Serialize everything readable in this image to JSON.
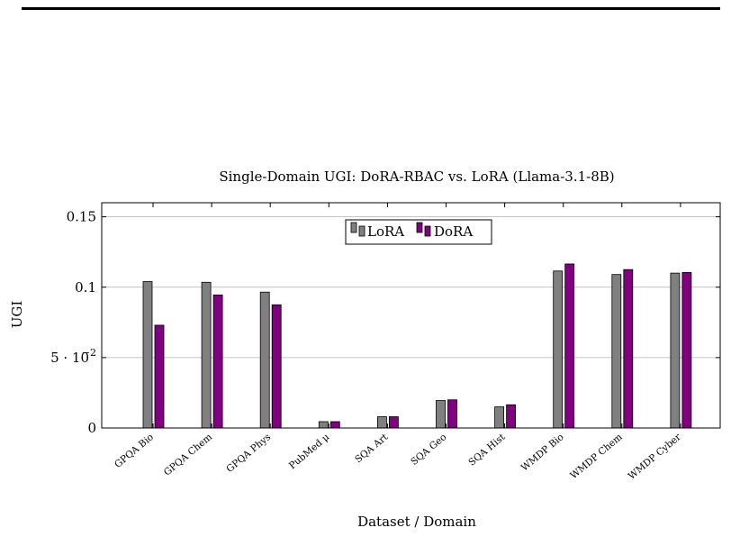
{
  "chart_data": {
    "type": "bar",
    "title": "Single-Domain UGI: DoRA-RBAC vs. LoRA (Llama-3.1-8B)",
    "xlabel": "Dataset / Domain",
    "ylabel": "UGI",
    "ylim": [
      0,
      0.16
    ],
    "yticks": [
      {
        "value": 0,
        "label": "0"
      },
      {
        "value": 0.05,
        "label": "5 · 10",
        "sup": "−2"
      },
      {
        "value": 0.1,
        "label": "0.1"
      },
      {
        "value": 0.15,
        "label": "0.15"
      }
    ],
    "grid": "horizontal",
    "legend_position": "top-center",
    "categories": [
      "GPQA Bio",
      "GPQA Chem",
      "GPQA Phys",
      "PubMed μ",
      "SQA Art",
      "SQA Geo",
      "SQA Hist",
      "WMDP Bio",
      "WMDP Chem",
      "WMDP Cyber"
    ],
    "series": [
      {
        "name": "LoRA",
        "color": "#808080",
        "values": [
          0.104,
          0.1035,
          0.0965,
          0.0045,
          0.008,
          0.0195,
          0.015,
          0.1115,
          0.109,
          0.11
        ]
      },
      {
        "name": "DoRA",
        "color": "#800080",
        "values": [
          0.073,
          0.0945,
          0.0875,
          0.0045,
          0.008,
          0.02,
          0.0165,
          0.1165,
          0.1125,
          0.1105
        ]
      }
    ]
  }
}
